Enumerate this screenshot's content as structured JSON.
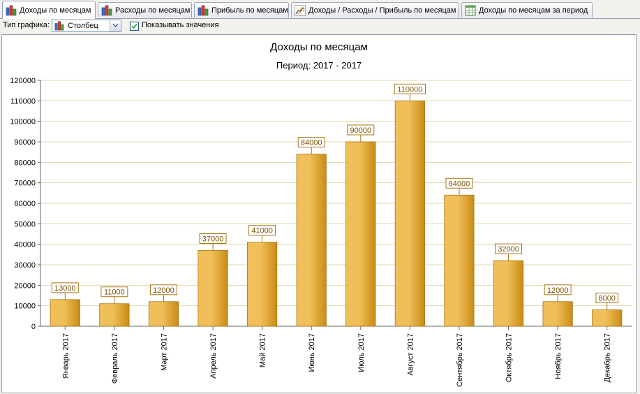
{
  "tabs": [
    {
      "label": "Доходы по месяцам",
      "icon": "bar-chart-icon",
      "active": true
    },
    {
      "label": "Расходы по месяцам",
      "icon": "bar-chart-icon",
      "active": false
    },
    {
      "label": "Прибыль по месяцам",
      "icon": "bar-chart-icon",
      "active": false
    },
    {
      "label": "Доходы / Расходы / Прибыль по месяцам",
      "icon": "line-chart-icon",
      "active": false
    },
    {
      "label": "Доходы по месяцам за период",
      "icon": "table-grid-icon",
      "active": false
    }
  ],
  "toolbar": {
    "chart_type_label": "Тип графика:",
    "chart_type_value": "Столбец",
    "chart_type_icon": "bar-chart-icon",
    "show_values_label": "Показывать значения",
    "show_values_checked": true
  },
  "colors": {
    "bar_light": "#f0bf5a",
    "bar_dark": "#c98c14",
    "bar_border": "#a87412",
    "grid": "#ddd8a8",
    "label_border": "#a87412",
    "label_text": "#7a5200"
  },
  "chart_data": {
    "type": "bar",
    "title": "Доходы по месяцам",
    "subtitle": "Период: 2017 - 2017",
    "categories": [
      "Январь 2017",
      "Февраль 2017",
      "Март 2017",
      "Апрель 2017",
      "Май 2017",
      "Июнь 2017",
      "Июль 2017",
      "Август 2017",
      "Сентябрь 2017",
      "Октябрь 2017",
      "Ноябрь 2017",
      "Декабрь 2017"
    ],
    "values": [
      13000,
      11000,
      12000,
      37000,
      41000,
      84000,
      90000,
      110000,
      64000,
      32000,
      12000,
      8000
    ],
    "ylim": [
      0,
      120000
    ],
    "yticks": [
      0,
      10000,
      20000,
      30000,
      40000,
      50000,
      60000,
      70000,
      80000,
      90000,
      100000,
      110000,
      120000
    ],
    "grid": true,
    "show_value_labels": true,
    "legend": "none"
  }
}
